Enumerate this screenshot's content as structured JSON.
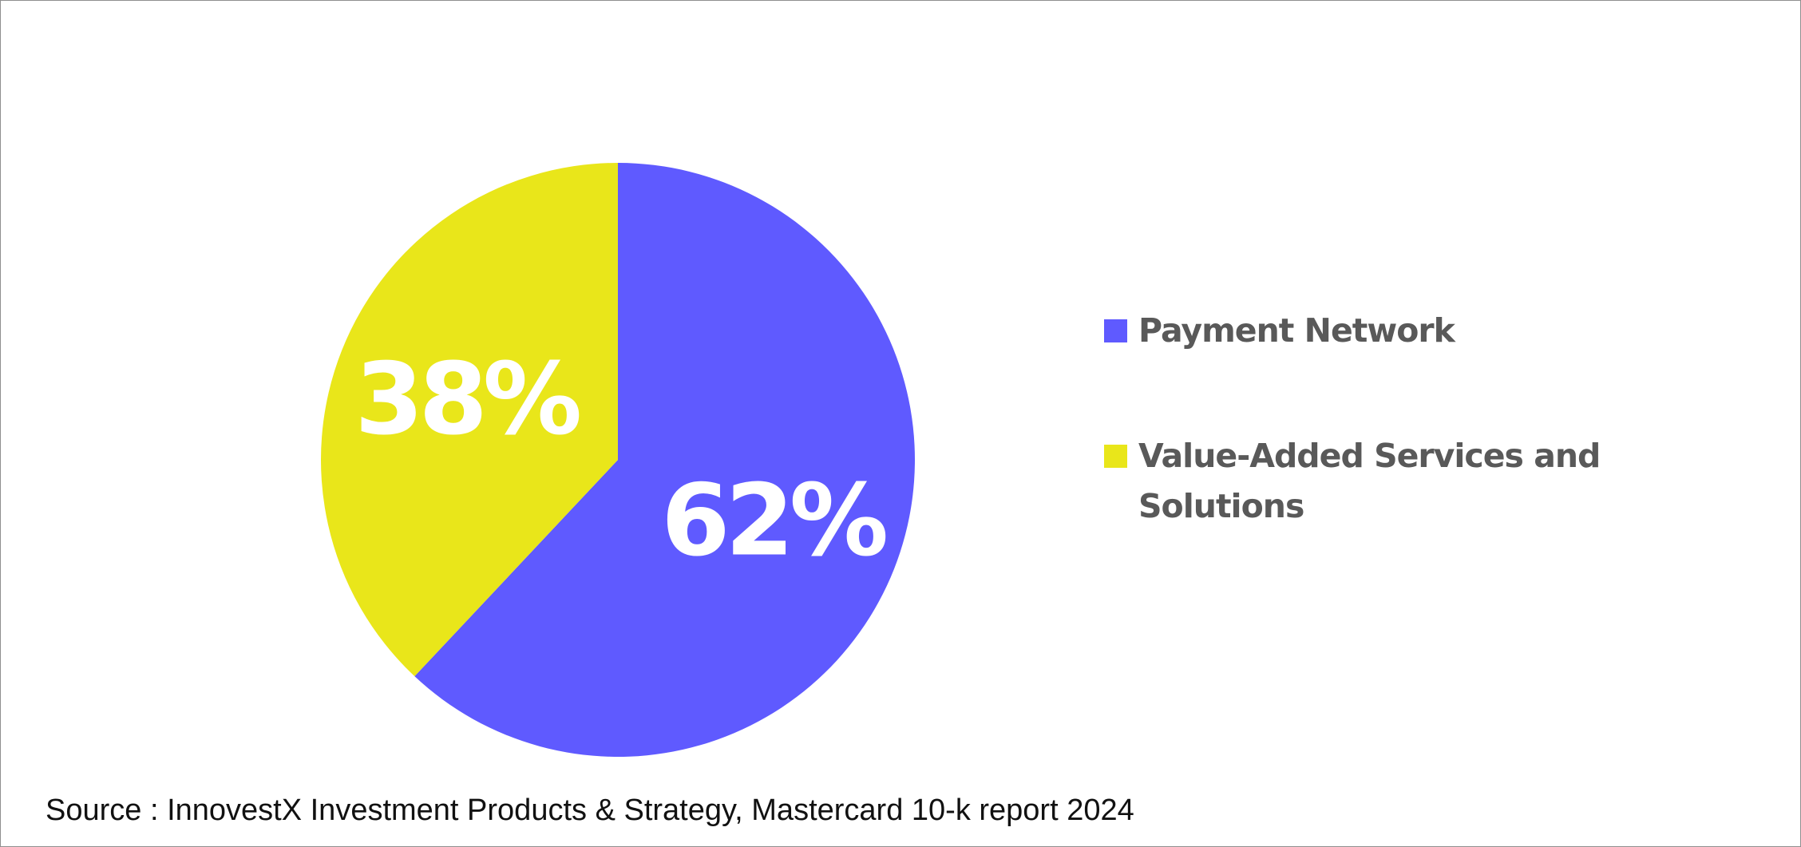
{
  "chart_data": {
    "type": "pie",
    "slices": [
      {
        "name": "Payment Network",
        "value": 62,
        "label": "62%",
        "color": "#5f5aff"
      },
      {
        "name": "Value-Added Services and Solutions",
        "value": 38,
        "label": "38%",
        "color": "#e9e61a"
      }
    ],
    "start_angle_deg": 0,
    "direction": "clockwise",
    "legend": {
      "placement": "right",
      "items": [
        {
          "label": "Payment Network",
          "lines": [
            "Payment Network"
          ],
          "color": "#5f5aff"
        },
        {
          "label": "Value-Added Services and Solutions",
          "lines": [
            "Value-Added Services and",
            "Solutions"
          ],
          "color": "#e9e61a"
        }
      ]
    }
  },
  "source": "Source : InnovestX Investment Products & Strategy, Mastercard 10-k report 2024",
  "colors": {
    "legend_text": "#595959",
    "slice_label": "#ffffff",
    "border": "#8f8f8f"
  }
}
